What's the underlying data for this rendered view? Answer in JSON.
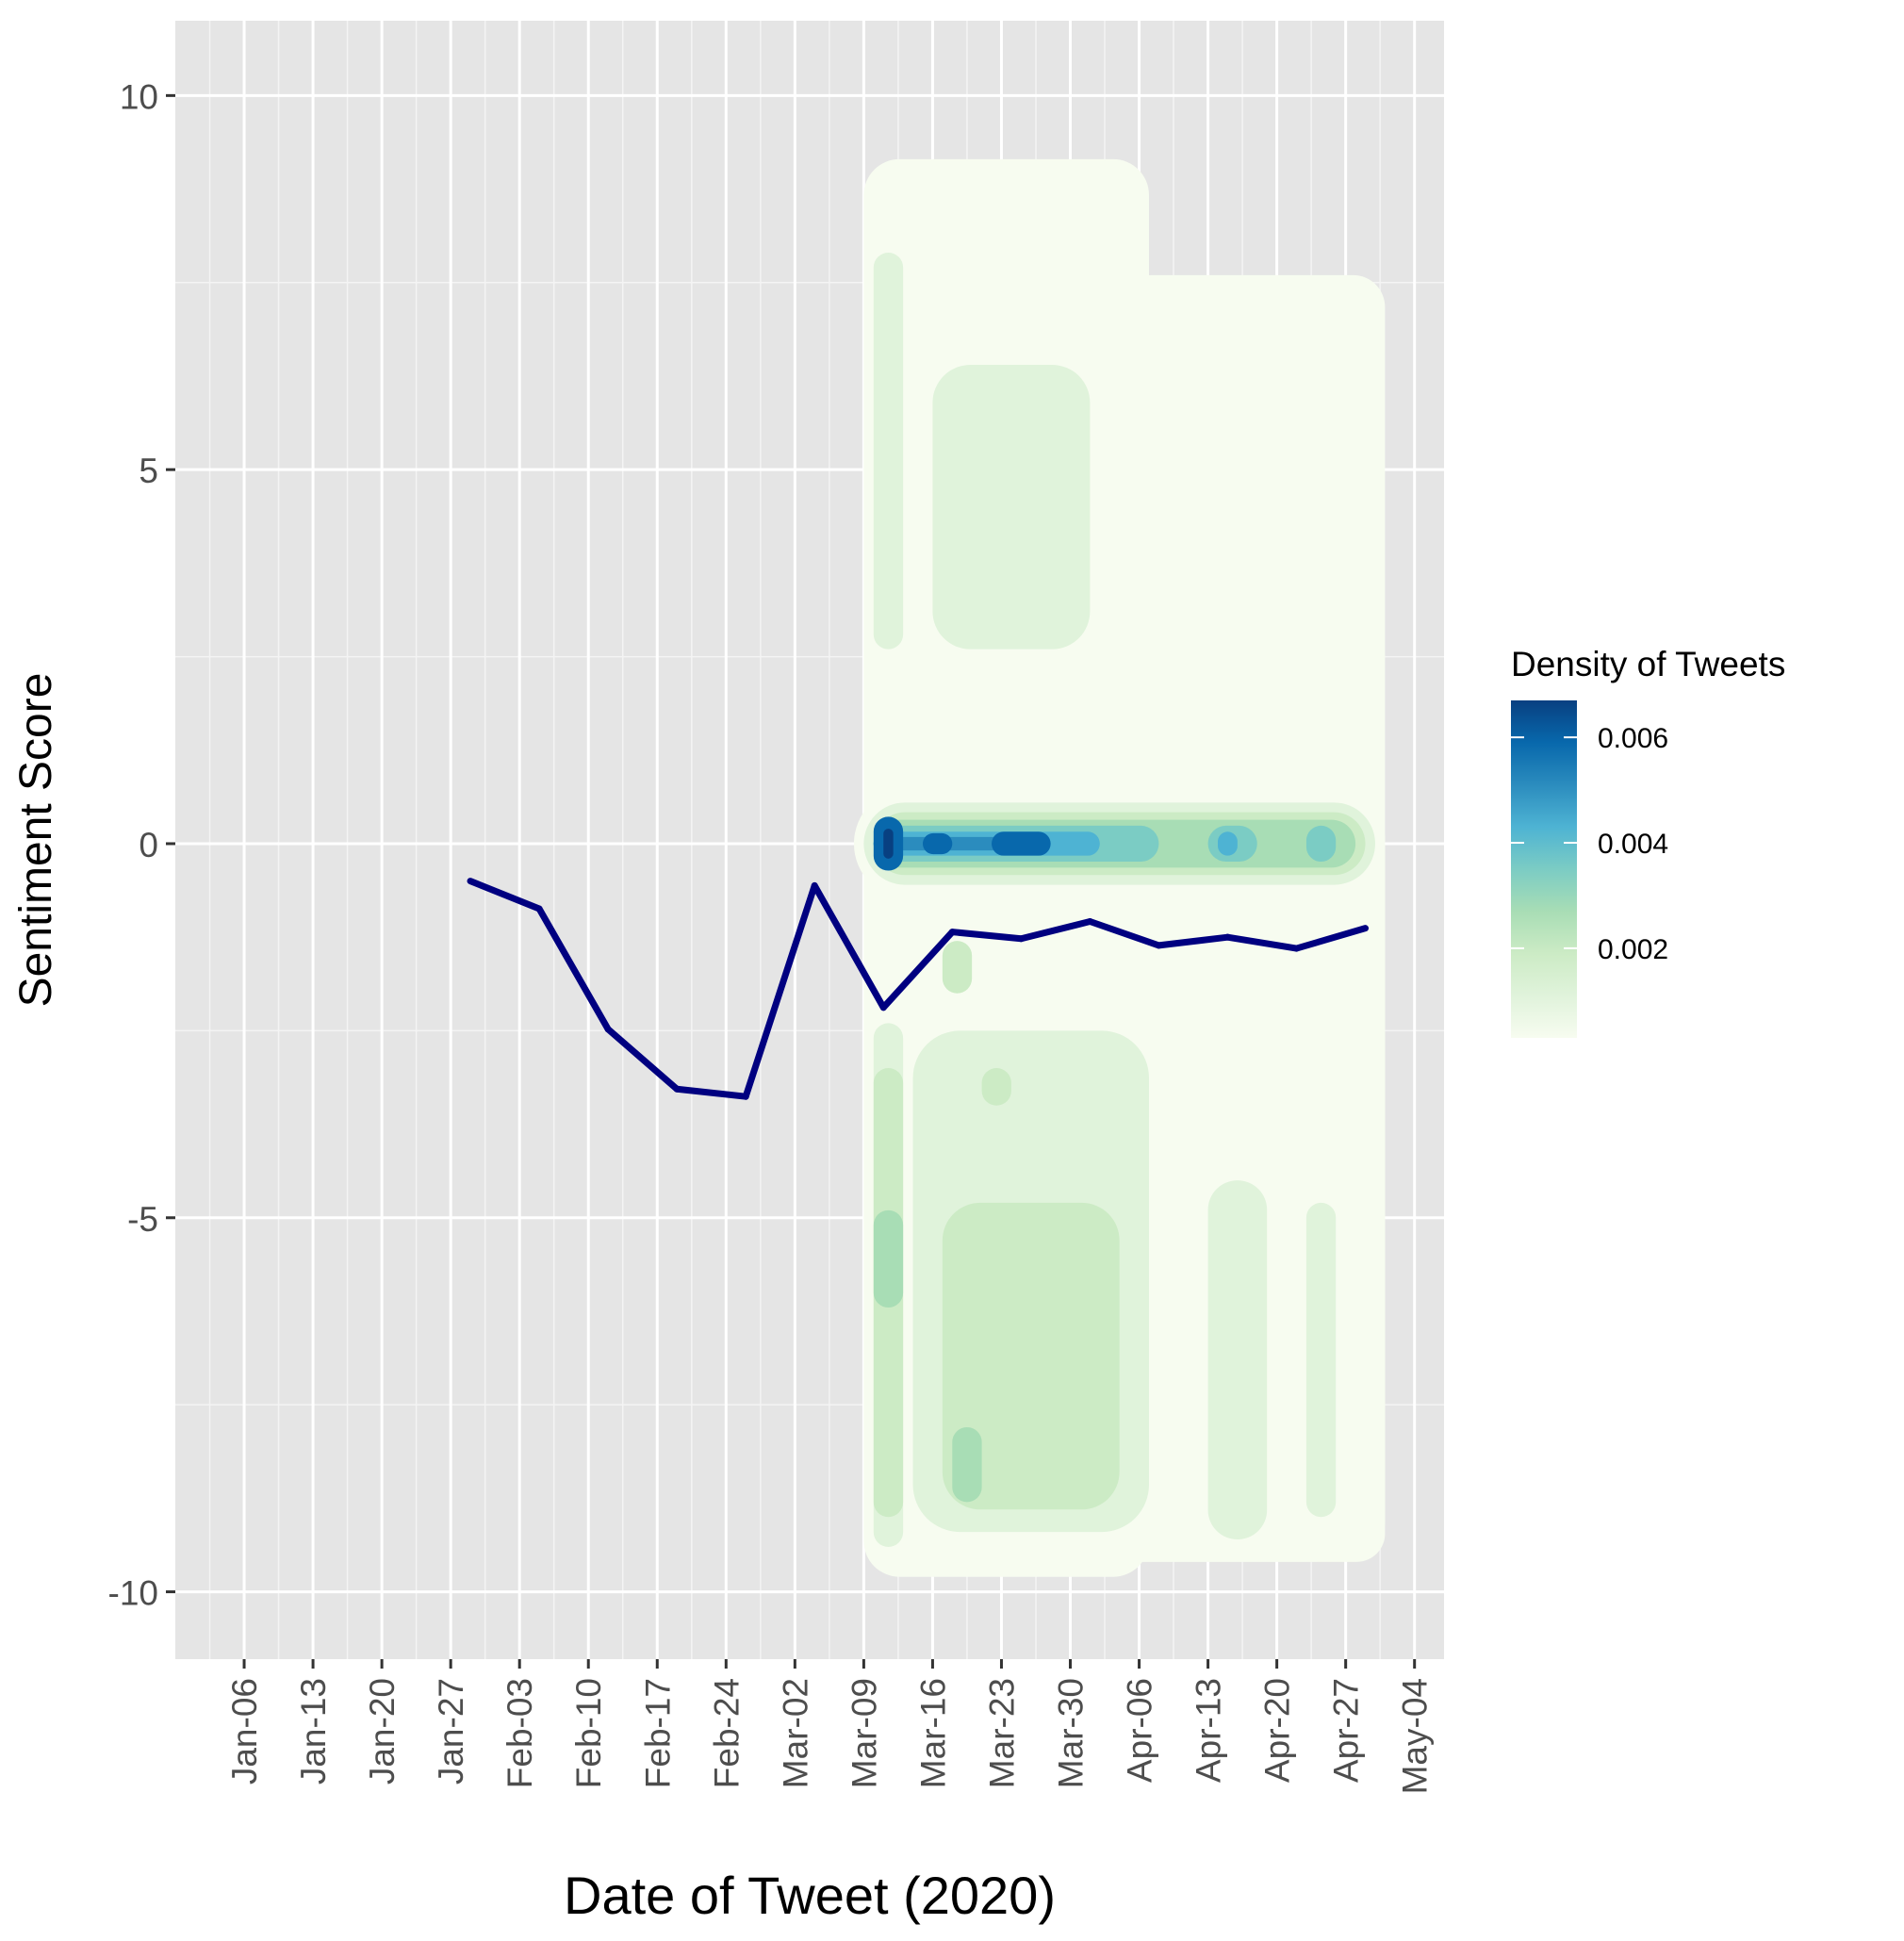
{
  "chart_data": {
    "type": "line",
    "overlay": "filled-2d-density",
    "title": "",
    "xlabel": "Date of Tweet (2020)",
    "ylabel": "Sentiment Score",
    "xlim": [
      "2019-12-30",
      "2020-05-07"
    ],
    "ylim": [
      -10.9,
      11
    ],
    "x_tick_dates": [
      "2020-01-06",
      "2020-01-13",
      "2020-01-20",
      "2020-01-27",
      "2020-02-03",
      "2020-02-10",
      "2020-02-17",
      "2020-02-24",
      "2020-03-02",
      "2020-03-09",
      "2020-03-16",
      "2020-03-23",
      "2020-03-30",
      "2020-04-06",
      "2020-04-13",
      "2020-04-20",
      "2020-04-27",
      "2020-05-04"
    ],
    "x_tick_labels": [
      "Jan-06",
      "Jan-13",
      "Jan-20",
      "Jan-27",
      "Feb-03",
      "Feb-10",
      "Feb-17",
      "Feb-24",
      "Mar-02",
      "Mar-09",
      "Mar-16",
      "Mar-23",
      "Mar-30",
      "Apr-06",
      "Apr-13",
      "Apr-20",
      "Apr-27",
      "May-04"
    ],
    "y_ticks": [
      10,
      5,
      0,
      -5,
      -10
    ],
    "y_tick_labels": [
      "10",
      "5",
      "0",
      "-5",
      "-10"
    ],
    "grid": true,
    "line_color": "#000080",
    "series": [
      {
        "x": [
          "2020-01-29",
          "2020-02-05",
          "2020-02-12",
          "2020-02-19",
          "2020-02-26",
          "2020-03-04",
          "2020-03-11",
          "2020-03-18",
          "2020-03-25",
          "2020-04-01",
          "2020-04-08",
          "2020-04-15",
          "2020-04-22",
          "2020-04-29"
        ],
        "y": [
          -0.5,
          -0.87,
          -2.48,
          -3.28,
          -3.38,
          -0.56,
          -2.19,
          -1.18,
          -1.27,
          -1.04,
          -1.36,
          -1.25,
          -1.4,
          -1.13
        ]
      }
    ],
    "legend": {
      "title": "Density of Tweets",
      "placement": "right",
      "tick_values": [
        0.002,
        0.004,
        0.006
      ],
      "tick_labels": [
        "0.002",
        "0.004",
        "0.006"
      ],
      "range": [
        0.0003,
        0.0067
      ],
      "colors": [
        "#f7fcf0",
        "#e0f3db",
        "#ccebc5",
        "#a8ddb5",
        "#7bccc4",
        "#4eb3d3",
        "#2b8cbe",
        "#0868ac",
        "#084081"
      ]
    }
  }
}
